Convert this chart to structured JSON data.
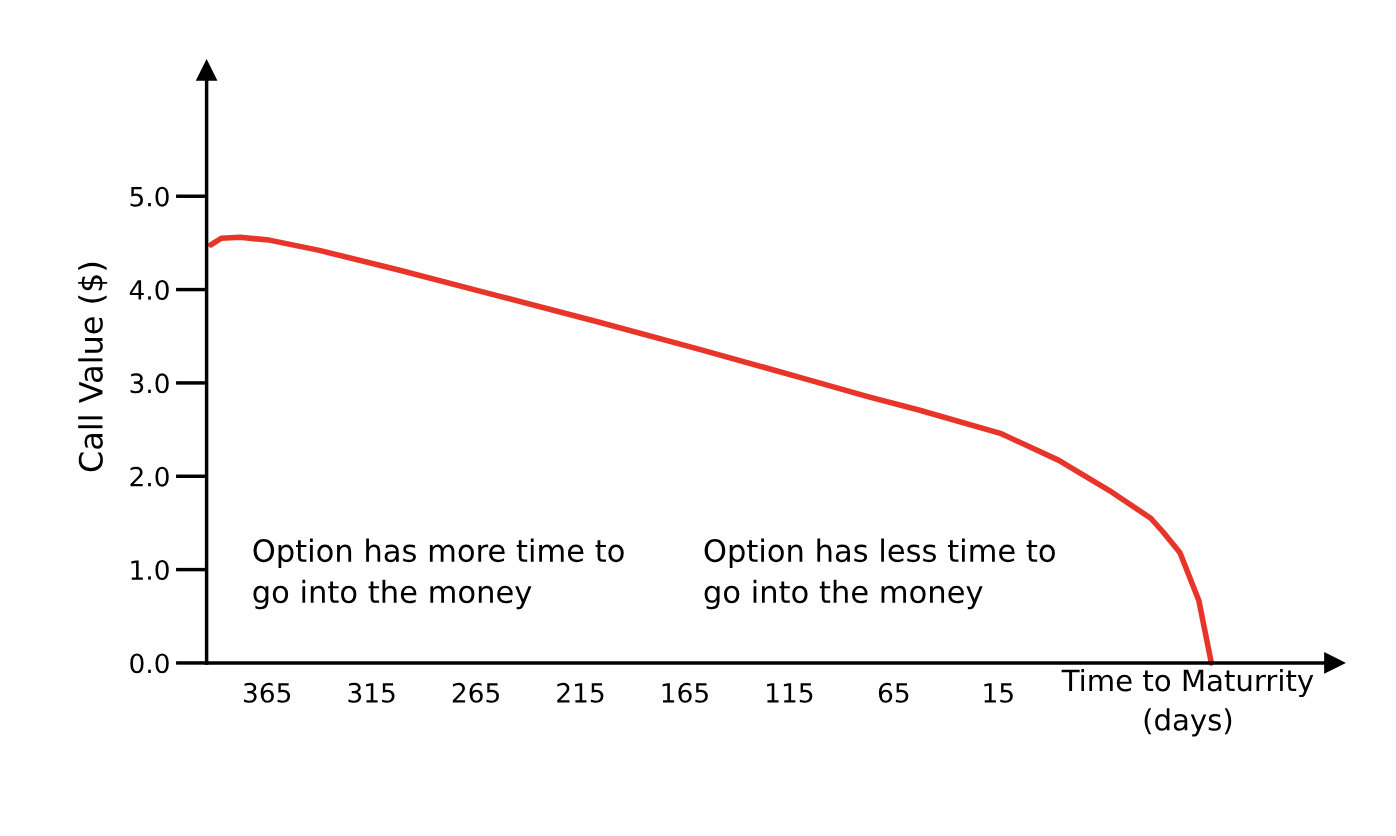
{
  "chart_data": {
    "type": "line",
    "xlabel": "Time to Maturrity\n(days)",
    "ylabel": "Call Value ($)",
    "x": [
      392,
      387,
      378,
      364,
      340,
      302,
      254,
      206,
      158,
      110,
      77,
      53,
      14,
      -14,
      -38,
      -58,
      -64,
      -72,
      -81,
      -87
    ],
    "series": [
      {
        "color": "#e8352a",
        "values": [
          4.48,
          4.55,
          4.56,
          4.53,
          4.42,
          4.21,
          3.93,
          3.65,
          3.36,
          3.06,
          2.85,
          2.71,
          2.46,
          2.17,
          1.85,
          1.55,
          1.4,
          1.18,
          0.67,
          0
        ]
      }
    ],
    "xlim": [
      394,
      -146
    ],
    "ylim": [
      0,
      6.35
    ],
    "xticks": [
      365,
      315,
      265,
      215,
      165,
      115,
      65,
      15
    ],
    "yticks": [
      {
        "value": 0,
        "label": "0.0"
      },
      {
        "value": 1,
        "label": "1.0"
      },
      {
        "value": 2,
        "label": "2.0"
      },
      {
        "value": 3,
        "label": "3.0"
      },
      {
        "value": 4,
        "label": "4.0"
      },
      {
        "value": 5,
        "label": "5.0"
      }
    ],
    "annotations": [
      "Option has more time to\ngo into the money",
      "Option has less time to\ngo into the money"
    ],
    "grid": false,
    "legend": false,
    "marker": "none",
    "line_style": "solid"
  }
}
